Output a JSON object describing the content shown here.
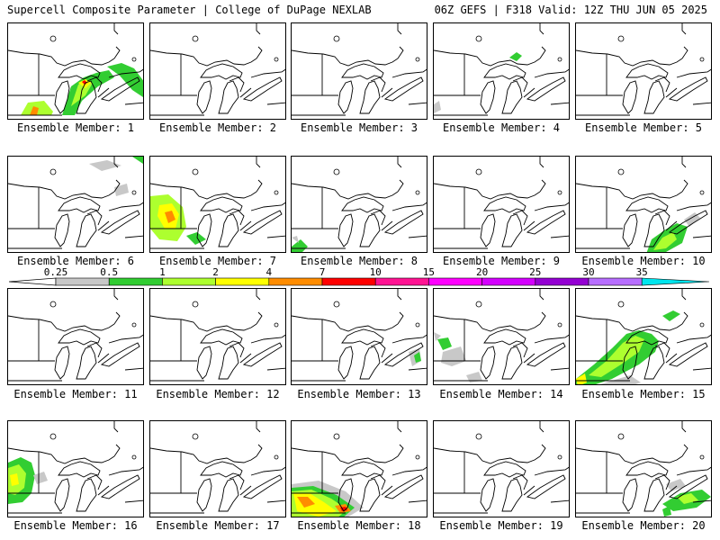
{
  "header": {
    "left": "Supercell Composite Parameter | College of DuPage NEXLAB",
    "right": "06Z GEFS | F318 Valid: 12Z THU JUN 05 2025"
  },
  "colorbar": {
    "tick_labels": [
      "0.25",
      "0.5",
      "1",
      "2",
      "4",
      "7",
      "10",
      "15",
      "20",
      "25",
      "30",
      "35"
    ],
    "colors": [
      "#c8c8c8",
      "#32cd32",
      "#adff2f",
      "#ffff00",
      "#ff8c00",
      "#ff0000",
      "#ff1493",
      "#ff00ff",
      "#d400ff",
      "#9400d3",
      "#b76eff",
      "#00e5ee"
    ]
  },
  "panels": [
    {
      "label": "Ensemble Member: 1"
    },
    {
      "label": "Ensemble Member: 2"
    },
    {
      "label": "Ensemble Member: 3"
    },
    {
      "label": "Ensemble Member: 4"
    },
    {
      "label": "Ensemble Member: 5"
    },
    {
      "label": "Ensemble Member: 6"
    },
    {
      "label": "Ensemble Member: 7"
    },
    {
      "label": "Ensemble Member: 8"
    },
    {
      "label": "Ensemble Member: 9"
    },
    {
      "label": "Ensemble Member: 10"
    },
    {
      "label": "Ensemble Member: 11"
    },
    {
      "label": "Ensemble Member: 12"
    },
    {
      "label": "Ensemble Member: 13"
    },
    {
      "label": "Ensemble Member: 14"
    },
    {
      "label": "Ensemble Member: 15"
    },
    {
      "label": "Ensemble Member: 16"
    },
    {
      "label": "Ensemble Member: 17"
    },
    {
      "label": "Ensemble Member: 18"
    },
    {
      "label": "Ensemble Member: 19"
    },
    {
      "label": "Ensemble Member: 20"
    }
  ]
}
